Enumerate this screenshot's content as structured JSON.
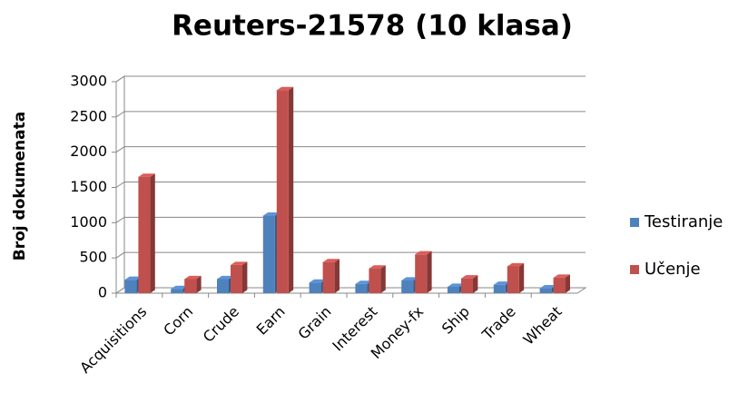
{
  "chart_data": {
    "type": "bar3d",
    "title": "Reuters-21578 (10 klasa)",
    "y_label": "Broj dokumenata",
    "categories": [
      "Acquisitions",
      "Corn",
      "Crude",
      "Earn",
      "Grain",
      "Interest",
      "Money-fx",
      "Ship",
      "Trade",
      "Wheat"
    ],
    "series": [
      {
        "name": "Testiranje",
        "color": "#4f81bd",
        "values": [
          190,
          60,
          200,
          1100,
          150,
          130,
          180,
          90,
          120,
          70
        ]
      },
      {
        "name": "Učenje",
        "color": "#c0504d",
        "values": [
          1650,
          200,
          400,
          2880,
          440,
          350,
          550,
          210,
          380,
          220
        ]
      }
    ],
    "ylim": [
      0,
      3000
    ],
    "yticks": [
      0,
      500,
      1000,
      1500,
      2000,
      2500,
      3000
    ],
    "grid": true,
    "legend": "right"
  }
}
